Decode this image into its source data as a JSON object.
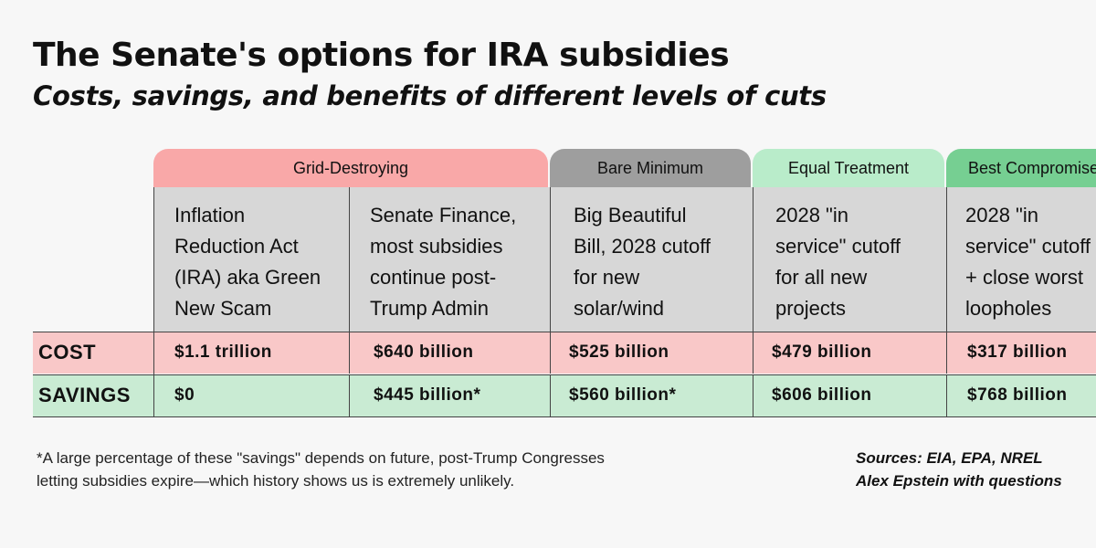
{
  "title": "The Senate's options for IRA subsidies",
  "subtitle": "Costs, savings, and benefits of different levels of cuts",
  "groups": [
    {
      "label": "Grid-Destroying",
      "color": "#f9a8a8"
    },
    {
      "label": "Bare Minimum",
      "color": "#9e9e9e"
    },
    {
      "label": "Equal Treatment",
      "color": "#b9ecca"
    },
    {
      "label": "Best Compromise",
      "color": "#76cf92"
    }
  ],
  "columns": [
    {
      "lines": [
        "Inflation",
        "Reduction Act",
        "(IRA) aka Green",
        "New Scam"
      ],
      "cost": "$1.1 trillion",
      "savings": "$0"
    },
    {
      "lines": [
        "Senate Finance,",
        "most subsidies",
        "continue post-",
        "Trump Admin"
      ],
      "cost": "$640 billion",
      "savings": "$445 billion*"
    },
    {
      "lines": [
        "Big Beautiful",
        "Bill, 2028 cutoff",
        "for new",
        "solar/wind"
      ],
      "cost": "$525 billion",
      "savings": "$560 billion*"
    },
    {
      "lines": [
        "2028 \"in",
        "service\" cutoff",
        "for all new",
        "projects"
      ],
      "cost": "$479 billion",
      "savings": "$606 billion"
    },
    {
      "lines": [
        "2028 \"in",
        "service\" cutoff",
        "+ close worst",
        "loopholes"
      ],
      "cost": "$317 billion",
      "savings": "$768 billion"
    }
  ],
  "rows": {
    "cost_label": "COST",
    "savings_label": "SAVINGS"
  },
  "footnote": [
    "*A large percentage of these \"savings\" depends on future, post-Trump Congresses",
    "letting subsidies expire—which history shows us is extremely unlikely."
  ],
  "sources": [
    "Sources: EIA, EPA, NREL",
    "Alex Epstein with questions"
  ],
  "colors": {
    "cost_row": "#f9c8c8",
    "savings_row": "#c9ebd3",
    "header_cell": "#d7d7d7"
  }
}
